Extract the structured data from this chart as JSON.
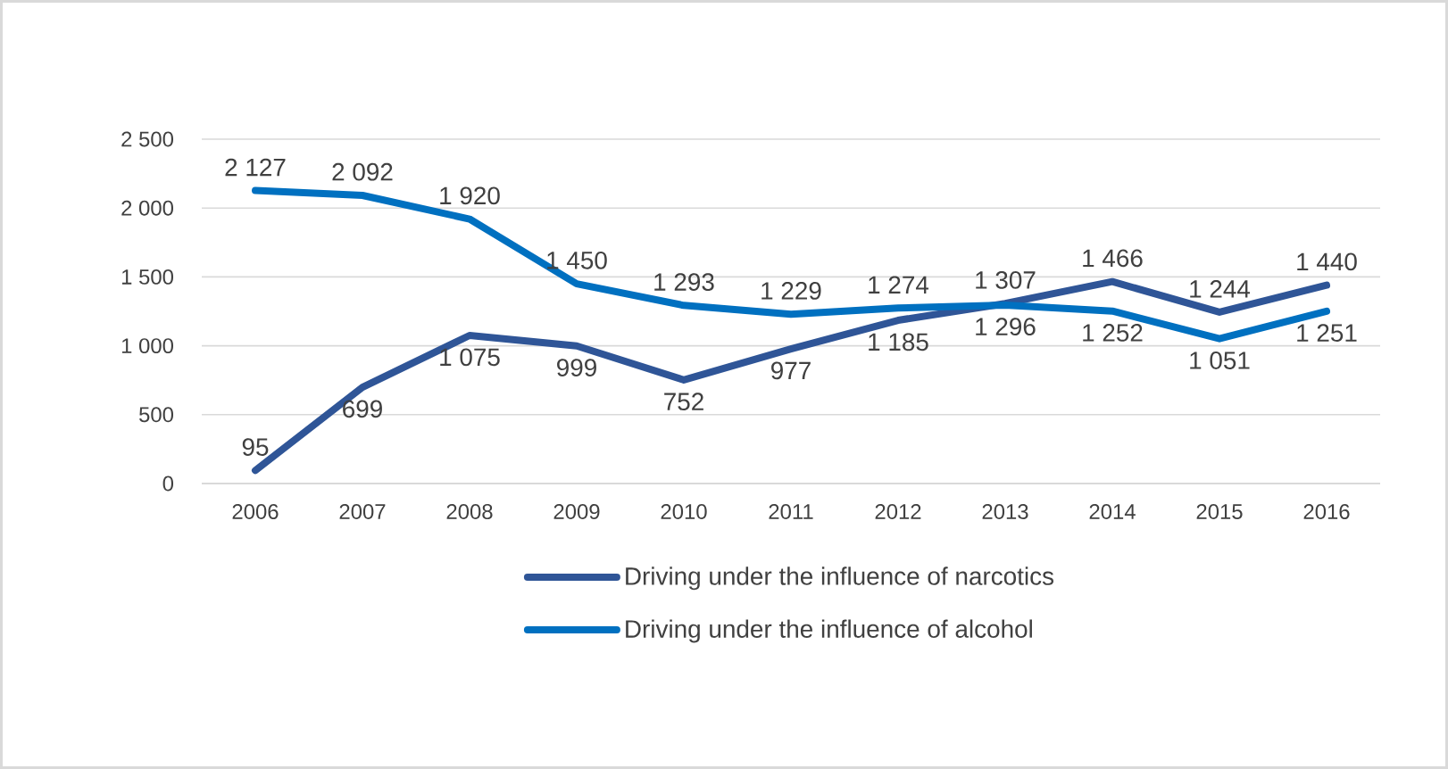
{
  "chart_data": {
    "type": "line",
    "categories": [
      "2006",
      "2007",
      "2008",
      "2009",
      "2010",
      "2011",
      "2012",
      "2013",
      "2014",
      "2015",
      "2016"
    ],
    "series": [
      {
        "name": "Driving under the influence of narcotics",
        "color": "#2f5597",
        "values": [
          95,
          699,
          1075,
          999,
          752,
          977,
          1185,
          1307,
          1466,
          1244,
          1440
        ],
        "value_labels": [
          "95",
          "699",
          "1 075",
          "999",
          "752",
          "977",
          "1 185",
          "1 307",
          "1 466",
          "1 244",
          "1 440"
        ]
      },
      {
        "name": "Driving under the influence of alcohol",
        "color": "#0070c0",
        "values": [
          2127,
          2092,
          1920,
          1450,
          1293,
          1229,
          1274,
          1296,
          1252,
          1051,
          1251
        ],
        "value_labels": [
          "2 127",
          "2 092",
          "1 920",
          "1 450",
          "1 293",
          "1 229",
          "1 274",
          "1 296",
          "1 252",
          "1 051",
          "1 251"
        ]
      }
    ],
    "ylim": [
      0,
      2500
    ],
    "yticks": [
      {
        "value": 0,
        "label": "0"
      },
      {
        "value": 500,
        "label": "500"
      },
      {
        "value": 1000,
        "label": "1 000"
      },
      {
        "value": 1500,
        "label": "1 500"
      },
      {
        "value": 2000,
        "label": "2 000"
      },
      {
        "value": 2500,
        "label": "2 500"
      }
    ],
    "grid": "y",
    "legend": "bottom"
  }
}
